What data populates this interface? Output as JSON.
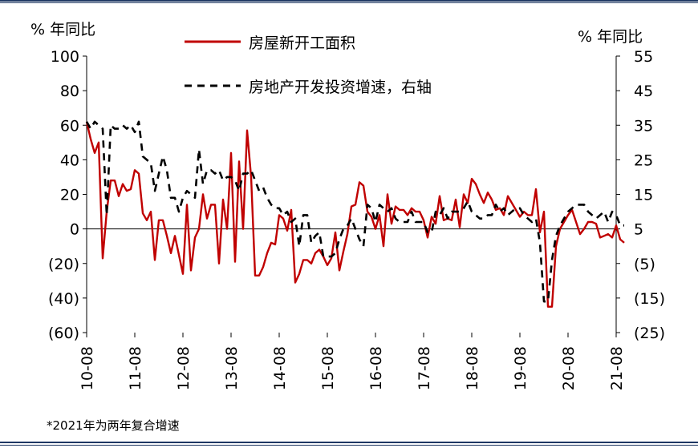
{
  "chart_data": {
    "type": "line",
    "left_unit": "% 年同比",
    "right_unit": "% 年同比",
    "legend_position": "top-center",
    "left_axis": {
      "ylim": [
        -60,
        100
      ],
      "ticks": [
        -60,
        -40,
        -20,
        0,
        20,
        40,
        60,
        80,
        100
      ],
      "tick_labels": [
        "(60)",
        "(40)",
        "(20)",
        "0",
        "20",
        "40",
        "60",
        "80",
        "100"
      ]
    },
    "right_axis": {
      "ylim": [
        -25,
        55
      ],
      "ticks": [
        -25,
        -15,
        -5,
        5,
        15,
        25,
        35,
        45,
        55
      ],
      "tick_labels": [
        "(25)",
        "(15)",
        "(5)",
        "5",
        "15",
        "25",
        "35",
        "45",
        "55"
      ]
    },
    "x_range": [
      "2010-08",
      "2021-08"
    ],
    "x_tick_labels": [
      "10-08",
      "11-08",
      "12-08",
      "13-08",
      "14-08",
      "15-08",
      "16-08",
      "17-08",
      "18-08",
      "19-08",
      "20-08",
      "21-08"
    ],
    "series": [
      {
        "name": "房屋新开工面积",
        "axis": "left",
        "color": "#C00000",
        "style": "solid",
        "points": [
          [
            "2010-08",
            62
          ],
          [
            "2010-09",
            52
          ],
          [
            "2010-10",
            44
          ],
          [
            "2010-11",
            50
          ],
          [
            "2010-12",
            -17
          ],
          [
            "2011-01",
            10
          ],
          [
            "2011-02",
            28
          ],
          [
            "2011-03",
            28
          ],
          [
            "2011-04",
            19
          ],
          [
            "2011-05",
            26
          ],
          [
            "2011-06",
            22
          ],
          [
            "2011-07",
            23
          ],
          [
            "2011-08",
            34
          ],
          [
            "2011-09",
            32
          ],
          [
            "2011-10",
            9
          ],
          [
            "2011-11",
            5
          ],
          [
            "2011-12",
            10
          ],
          [
            "2012-01",
            -18
          ],
          [
            "2012-02",
            5
          ],
          [
            "2012-03",
            5
          ],
          [
            "2012-04",
            -4
          ],
          [
            "2012-05",
            -14
          ],
          [
            "2012-06",
            -4
          ],
          [
            "2012-07",
            -15
          ],
          [
            "2012-08",
            -26
          ],
          [
            "2012-09",
            14
          ],
          [
            "2012-10",
            -24
          ],
          [
            "2012-11",
            -5
          ],
          [
            "2012-12",
            0
          ],
          [
            "2013-01",
            20
          ],
          [
            "2013-02",
            6
          ],
          [
            "2013-03",
            14
          ],
          [
            "2013-04",
            14
          ],
          [
            "2013-05",
            -20
          ],
          [
            "2013-06",
            17
          ],
          [
            "2013-07",
            0
          ],
          [
            "2013-08",
            44
          ],
          [
            "2013-09",
            -19
          ],
          [
            "2013-10",
            39
          ],
          [
            "2013-11",
            0
          ],
          [
            "2013-12",
            57
          ],
          [
            "2014-01",
            30
          ],
          [
            "2014-02",
            -27
          ],
          [
            "2014-03",
            -27
          ],
          [
            "2014-04",
            -22
          ],
          [
            "2014-05",
            -14
          ],
          [
            "2014-06",
            -8
          ],
          [
            "2014-07",
            -9
          ],
          [
            "2014-08",
            8
          ],
          [
            "2014-09",
            6
          ],
          [
            "2014-10",
            -1
          ],
          [
            "2014-11",
            11
          ],
          [
            "2014-12",
            -31
          ],
          [
            "2015-01",
            -26
          ],
          [
            "2015-02",
            -18
          ],
          [
            "2015-03",
            -18
          ],
          [
            "2015-04",
            -20
          ],
          [
            "2015-05",
            -14
          ],
          [
            "2015-06",
            -12
          ],
          [
            "2015-07",
            -16
          ],
          [
            "2015-08",
            -21
          ],
          [
            "2015-09",
            -17
          ],
          [
            "2015-10",
            -2
          ],
          [
            "2015-11",
            -24
          ],
          [
            "2015-12",
            -13
          ],
          [
            "2016-01",
            -3
          ],
          [
            "2016-02",
            13
          ],
          [
            "2016-03",
            14
          ],
          [
            "2016-04",
            27
          ],
          [
            "2016-05",
            25
          ],
          [
            "2016-06",
            10
          ],
          [
            "2016-07",
            7
          ],
          [
            "2016-08",
            0
          ],
          [
            "2016-09",
            8
          ],
          [
            "2016-10",
            -10
          ],
          [
            "2016-11",
            20
          ],
          [
            "2016-12",
            3
          ],
          [
            "2017-01",
            13
          ],
          [
            "2017-02",
            11
          ],
          [
            "2017-03",
            11
          ],
          [
            "2017-04",
            8
          ],
          [
            "2017-05",
            12
          ],
          [
            "2017-06",
            10
          ],
          [
            "2017-07",
            10
          ],
          [
            "2017-08",
            5
          ],
          [
            "2017-09",
            -5
          ],
          [
            "2017-10",
            7
          ],
          [
            "2017-11",
            3
          ],
          [
            "2017-12",
            19
          ],
          [
            "2018-01",
            5
          ],
          [
            "2018-02",
            6
          ],
          [
            "2018-03",
            5
          ],
          [
            "2018-04",
            17
          ],
          [
            "2018-05",
            1
          ],
          [
            "2018-06",
            20
          ],
          [
            "2018-07",
            15
          ],
          [
            "2018-08",
            29
          ],
          [
            "2018-09",
            26
          ],
          [
            "2018-10",
            20
          ],
          [
            "2018-11",
            15
          ],
          [
            "2018-12",
            21
          ],
          [
            "2019-01",
            17
          ],
          [
            "2019-02",
            11
          ],
          [
            "2019-03",
            12
          ],
          [
            "2019-04",
            8
          ],
          [
            "2019-05",
            19
          ],
          [
            "2019-06",
            15
          ],
          [
            "2019-07",
            11
          ],
          [
            "2019-08",
            7
          ],
          [
            "2019-09",
            10
          ],
          [
            "2019-10",
            8
          ],
          [
            "2019-11",
            8
          ],
          [
            "2019-12",
            23
          ],
          [
            "2020-01",
            -2
          ],
          [
            "2020-02",
            10
          ],
          [
            "2020-03",
            -45
          ],
          [
            "2020-04",
            -45
          ],
          [
            "2020-05",
            -10
          ],
          [
            "2020-06",
            0
          ],
          [
            "2020-07",
            4
          ],
          [
            "2020-08",
            8
          ],
          [
            "2020-09",
            11
          ],
          [
            "2020-10",
            4
          ],
          [
            "2020-11",
            -3
          ],
          [
            "2020-12",
            0
          ],
          [
            "2021-01",
            4
          ],
          [
            "2021-02",
            4
          ],
          [
            "2021-03",
            3
          ],
          [
            "2021-04",
            -5
          ],
          [
            "2021-05",
            -4
          ],
          [
            "2021-06",
            -3
          ],
          [
            "2021-07",
            -5
          ],
          [
            "2021-08",
            2
          ],
          [
            "2021-09",
            -6
          ],
          [
            "2021-10",
            -8
          ]
        ]
      },
      {
        "name": "房地产开发投资增速，右轴",
        "axis": "right",
        "color": "#000000",
        "style": "dashed",
        "points": [
          [
            "2010-08",
            36
          ],
          [
            "2010-09",
            34
          ],
          [
            "2010-10",
            36
          ],
          [
            "2010-11",
            35
          ],
          [
            "2010-12",
            34
          ],
          [
            "2011-01",
            9
          ],
          [
            "2011-02",
            35
          ],
          [
            "2011-03",
            34
          ],
          [
            "2011-04",
            34
          ],
          [
            "2011-05",
            35
          ],
          [
            "2011-06",
            34
          ],
          [
            "2011-07",
            35
          ],
          [
            "2011-08",
            33
          ],
          [
            "2011-09",
            36
          ],
          [
            "2011-10",
            26
          ],
          [
            "2011-11",
            25
          ],
          [
            "2011-12",
            24
          ],
          [
            "2012-01",
            16
          ],
          [
            "2012-02",
            21
          ],
          [
            "2012-03",
            26
          ],
          [
            "2012-04",
            22
          ],
          [
            "2012-05",
            14
          ],
          [
            "2012-06",
            14
          ],
          [
            "2012-07",
            10
          ],
          [
            "2012-08",
            14
          ],
          [
            "2012-09",
            16
          ],
          [
            "2012-10",
            15
          ],
          [
            "2012-11",
            14
          ],
          [
            "2012-12",
            28
          ],
          [
            "2013-01",
            18
          ],
          [
            "2013-02",
            22
          ],
          [
            "2013-03",
            22
          ],
          [
            "2013-04",
            21
          ],
          [
            "2013-05",
            22
          ],
          [
            "2013-06",
            19
          ],
          [
            "2013-07",
            20
          ],
          [
            "2013-08",
            20
          ],
          [
            "2013-09",
            19
          ],
          [
            "2013-10",
            16
          ],
          [
            "2013-11",
            21
          ],
          [
            "2013-12",
            21
          ],
          [
            "2014-01",
            22
          ],
          [
            "2014-02",
            19
          ],
          [
            "2014-03",
            16
          ],
          [
            "2014-04",
            17
          ],
          [
            "2014-05",
            14
          ],
          [
            "2014-06",
            12
          ],
          [
            "2014-07",
            11
          ],
          [
            "2014-08",
            11
          ],
          [
            "2014-09",
            9
          ],
          [
            "2014-10",
            10
          ],
          [
            "2014-11",
            7
          ],
          [
            "2014-12",
            8
          ],
          [
            "2015-01",
            0
          ],
          [
            "2015-02",
            9
          ],
          [
            "2015-03",
            9
          ],
          [
            "2015-04",
            1
          ],
          [
            "2015-05",
            3
          ],
          [
            "2015-06",
            4
          ],
          [
            "2015-07",
            -3
          ],
          [
            "2015-08",
            -3
          ],
          [
            "2015-09",
            -3
          ],
          [
            "2015-10",
            -2
          ],
          [
            "2015-11",
            2
          ],
          [
            "2015-12",
            5
          ],
          [
            "2016-01",
            6
          ],
          [
            "2016-02",
            8
          ],
          [
            "2016-03",
            5
          ],
          [
            "2016-04",
            2
          ],
          [
            "2016-05",
            0
          ],
          [
            "2016-06",
            12
          ],
          [
            "2016-07",
            11
          ],
          [
            "2016-08",
            7
          ],
          [
            "2016-09",
            12
          ],
          [
            "2016-10",
            11
          ],
          [
            "2016-11",
            10
          ],
          [
            "2016-12",
            11
          ],
          [
            "2017-01",
            8
          ],
          [
            "2017-02",
            7
          ],
          [
            "2017-03",
            7
          ],
          [
            "2017-04",
            7
          ],
          [
            "2017-05",
            10
          ],
          [
            "2017-06",
            7
          ],
          [
            "2017-07",
            7
          ],
          [
            "2017-08",
            7
          ],
          [
            "2017-09",
            4
          ],
          [
            "2017-10",
            4
          ],
          [
            "2017-11",
            10
          ],
          [
            "2017-12",
            9
          ],
          [
            "2018-01",
            11
          ],
          [
            "2018-02",
            8
          ],
          [
            "2018-03",
            10
          ],
          [
            "2018-04",
            10
          ],
          [
            "2018-05",
            10
          ],
          [
            "2018-06",
            11
          ],
          [
            "2018-07",
            13
          ],
          [
            "2018-08",
            10
          ],
          [
            "2018-09",
            9
          ],
          [
            "2018-10",
            8
          ],
          [
            "2018-11",
            8
          ],
          [
            "2018-12",
            9
          ],
          [
            "2019-01",
            9
          ],
          [
            "2019-02",
            12
          ],
          [
            "2019-03",
            10
          ],
          [
            "2019-04",
            11
          ],
          [
            "2019-05",
            9
          ],
          [
            "2019-06",
            10
          ],
          [
            "2019-07",
            11
          ],
          [
            "2019-08",
            11
          ],
          [
            "2019-09",
            9
          ],
          [
            "2019-10",
            8
          ],
          [
            "2019-11",
            7
          ],
          [
            "2019-12",
            8
          ],
          [
            "2020-01",
            1
          ],
          [
            "2020-02",
            -16
          ],
          [
            "2020-03",
            -16
          ],
          [
            "2020-04",
            -4
          ],
          [
            "2020-05",
            3
          ],
          [
            "2020-06",
            6
          ],
          [
            "2020-07",
            8
          ],
          [
            "2020-08",
            10
          ],
          [
            "2020-09",
            11
          ],
          [
            "2020-10",
            12
          ],
          [
            "2020-11",
            12
          ],
          [
            "2020-12",
            12
          ],
          [
            "2021-01",
            10
          ],
          [
            "2021-02",
            9
          ],
          [
            "2021-03",
            8
          ],
          [
            "2021-04",
            9
          ],
          [
            "2021-05",
            10
          ],
          [
            "2021-06",
            7
          ],
          [
            "2021-07",
            10
          ],
          [
            "2021-08",
            9
          ],
          [
            "2021-09",
            6
          ],
          [
            "2021-10",
            6
          ]
        ]
      }
    ]
  },
  "footnote": "*2021年为两年复合增速",
  "colors": {
    "red_series": "#C00000",
    "black_series": "#000000",
    "frame_lines": "#1F3864"
  }
}
